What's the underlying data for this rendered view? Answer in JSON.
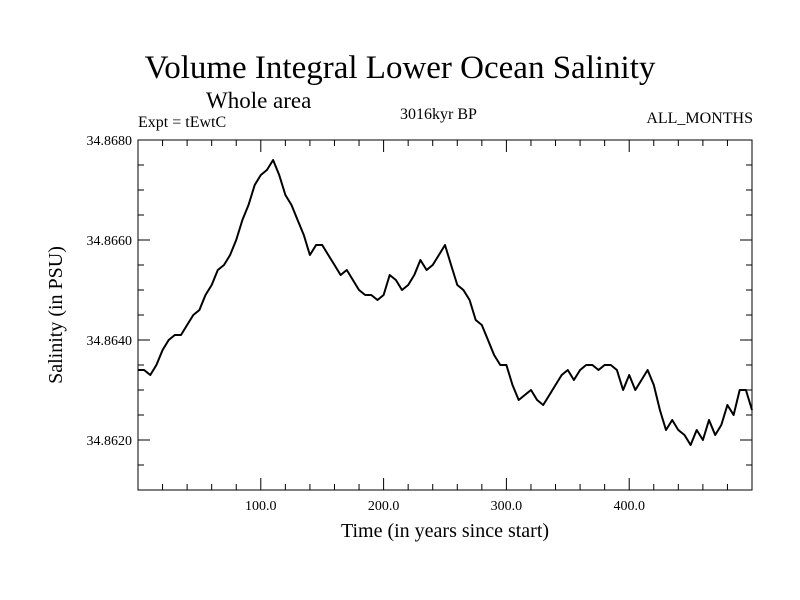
{
  "header": {
    "title": "Volume Integral Lower Ocean Salinity",
    "subtitle": "Whole area",
    "experiment": "Expt = tEwtC",
    "period": "3016kyr BP",
    "months": "ALL_MONTHS"
  },
  "chart_data": {
    "type": "line",
    "title": "Volume Integral Lower Ocean Salinity",
    "xlabel": "Time (in years since start)",
    "ylabel": "Salinity (in PSU)",
    "xlim": [
      0,
      500
    ],
    "ylim": [
      34.861,
      34.868
    ],
    "xticks": [
      100,
      200,
      300,
      400
    ],
    "xtick_labels": [
      "100.0",
      "200.0",
      "300.0",
      "400.0"
    ],
    "yticks": [
      34.862,
      34.864,
      34.866,
      34.868
    ],
    "ytick_labels": [
      "34.8620",
      "34.8640",
      "34.8660",
      "34.8680"
    ],
    "grid": false,
    "series": [
      {
        "name": "Salinity",
        "color": "#000000",
        "x": [
          0,
          5,
          10,
          15,
          20,
          25,
          30,
          35,
          40,
          45,
          50,
          55,
          60,
          65,
          70,
          75,
          80,
          85,
          90,
          95,
          100,
          105,
          110,
          115,
          120,
          125,
          130,
          135,
          140,
          145,
          150,
          155,
          160,
          165,
          170,
          175,
          180,
          185,
          190,
          195,
          200,
          205,
          210,
          215,
          220,
          225,
          230,
          235,
          240,
          245,
          250,
          255,
          260,
          265,
          270,
          275,
          280,
          285,
          290,
          295,
          300,
          305,
          310,
          315,
          320,
          325,
          330,
          335,
          340,
          345,
          350,
          355,
          360,
          365,
          370,
          375,
          380,
          385,
          390,
          395,
          400,
          405,
          410,
          415,
          420,
          425,
          430,
          435,
          440,
          445,
          450,
          455,
          460,
          465,
          470,
          475,
          480,
          485,
          490,
          495,
          500
        ],
        "values": [
          34.8634,
          34.8634,
          34.8633,
          34.8635,
          34.8638,
          34.864,
          34.8641,
          34.8641,
          34.8643,
          34.8645,
          34.8646,
          34.8649,
          34.8651,
          34.8654,
          34.8655,
          34.8657,
          34.866,
          34.8664,
          34.8667,
          34.8671,
          34.8673,
          34.8674,
          34.8676,
          34.8673,
          34.8669,
          34.8667,
          34.8664,
          34.8661,
          34.8657,
          34.8659,
          34.8659,
          34.8657,
          34.8655,
          34.8653,
          34.8654,
          34.8652,
          34.865,
          34.8649,
          34.8649,
          34.8648,
          34.8649,
          34.8653,
          34.8652,
          34.865,
          34.8651,
          34.8653,
          34.8656,
          34.8654,
          34.8655,
          34.8657,
          34.8659,
          34.8655,
          34.8651,
          34.865,
          34.8648,
          34.8644,
          34.8643,
          34.864,
          34.8637,
          34.8635,
          34.8635,
          34.8631,
          34.8628,
          34.8629,
          34.863,
          34.8628,
          34.8627,
          34.8629,
          34.8631,
          34.8633,
          34.8634,
          34.8632,
          34.8634,
          34.8635,
          34.8635,
          34.8634,
          34.8635,
          34.8635,
          34.8634,
          34.863,
          34.8633,
          34.863,
          34.8632,
          34.8634,
          34.8631,
          34.8626,
          34.8622,
          34.8624,
          34.8622,
          34.8621,
          34.8619,
          34.8622,
          34.862,
          34.8624,
          34.8621,
          34.8623,
          34.8627,
          34.8625,
          34.863,
          34.863,
          34.8626
        ]
      }
    ]
  }
}
